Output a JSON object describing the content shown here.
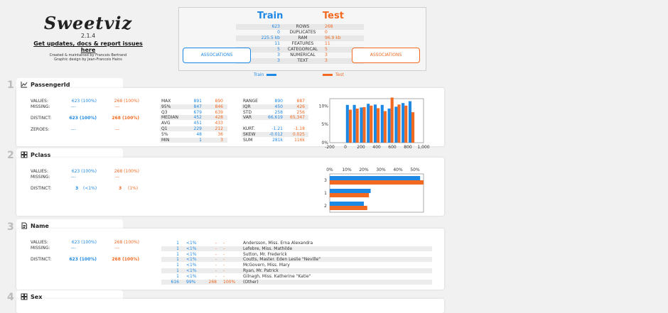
{
  "logo": {
    "brand": "Sweetviz",
    "version": "2.1.4",
    "link": "Get updates, docs & report issues here",
    "credit1": "Created & maintained by Francois Bertrand",
    "credit2": "Graphic design by Jean-Francois Hains"
  },
  "summary": {
    "train_label": "Train",
    "test_label": "Test",
    "rows": [
      {
        "label": "ROWS",
        "train": "623",
        "test": "268"
      },
      {
        "label": "DUPLICATES",
        "train": "0",
        "test": "0"
      },
      {
        "label": "RAM",
        "train": "225.5 kb",
        "test": "96.9 kb"
      },
      {
        "label": "FEATURES",
        "train": "11",
        "test": "11"
      },
      {
        "label": "CATEGORICAL",
        "train": "5",
        "test": "5"
      },
      {
        "label": "NUMERICAL",
        "train": "3",
        "test": "3"
      },
      {
        "label": "TEXT",
        "train": "3",
        "test": "3"
      }
    ],
    "assoc_label": "ASSOCIATIONS"
  },
  "legend": {
    "train": "Train",
    "test": "Test"
  },
  "colors": {
    "train": "#1e88e5",
    "test": "#f26a21"
  },
  "features": [
    {
      "index": "1",
      "name": "PassengerId",
      "icon": "line-chart-icon",
      "left": [
        {
          "label": "VALUES:",
          "train": "623 (100%)",
          "test": "268 (100%)"
        },
        {
          "label": "MISSING:",
          "train": "---",
          "test": "---"
        },
        {
          "label": "DISTINCT:",
          "train": "623 (100%)",
          "test": "268 (100%)"
        },
        {
          "label": "ZEROES:",
          "train": "---",
          "test": "---"
        }
      ],
      "mid": [
        {
          "label": "MAX",
          "train": "891",
          "test": "890"
        },
        {
          "label": "95%",
          "train": "847",
          "test": "846"
        },
        {
          "label": "Q3",
          "train": "679",
          "test": "639"
        },
        {
          "label": "MEDIAN",
          "train": "452",
          "test": "428"
        },
        {
          "label": "AVG",
          "train": "451",
          "test": "433"
        },
        {
          "label": "Q1",
          "train": "229",
          "test": "212"
        },
        {
          "label": "5%",
          "train": "48",
          "test": "36"
        },
        {
          "label": "MIN",
          "train": "1",
          "test": "3"
        }
      ],
      "right": [
        {
          "label": "RANGE",
          "train": "890",
          "test": "887"
        },
        {
          "label": "IQR",
          "train": "450",
          "test": "426"
        },
        {
          "label": "STD",
          "train": "258",
          "test": "256"
        },
        {
          "label": "VAR",
          "train": "66,619",
          "test": "65,347"
        },
        {
          "label": "KURT.",
          "train": "-1.21",
          "test": "-1.18"
        },
        {
          "label": "SKEW",
          "train": "-0.012",
          "test": "0.025"
        },
        {
          "label": "SUM",
          "train": "281k",
          "test": "116k"
        }
      ]
    },
    {
      "index": "2",
      "name": "Pclass",
      "icon": "grid-icon",
      "left": [
        {
          "label": "VALUES:",
          "train": "623 (100%)",
          "test": "268 (100%)"
        },
        {
          "label": "MISSING:",
          "train": "---",
          "test": "---"
        },
        {
          "label": "DISTINCT:",
          "train": "3",
          "train2": "(<1%)",
          "test": "3",
          "test2": "(1%)"
        }
      ]
    },
    {
      "index": "3",
      "name": "Name",
      "icon": "document-icon",
      "left": [
        {
          "label": "VALUES:",
          "train": "623 (100%)",
          "test": "268 (100%)"
        },
        {
          "label": "MISSING:",
          "train": "---",
          "test": "---"
        },
        {
          "label": "DISTINCT:",
          "train": "623 (100%)",
          "test": "268 (100%)"
        }
      ],
      "top_values": [
        {
          "tc": "1",
          "tp": "<1%",
          "sc": "-",
          "sp": "-",
          "value": "Andersson, Miss. Erna Alexandra"
        },
        {
          "tc": "1",
          "tp": "<1%",
          "sc": "-",
          "sp": "-",
          "value": "Lefebre, Miss. Mathilde"
        },
        {
          "tc": "1",
          "tp": "<1%",
          "sc": "-",
          "sp": "-",
          "value": "Sutton, Mr. Frederick"
        },
        {
          "tc": "1",
          "tp": "<1%",
          "sc": "-",
          "sp": "-",
          "value": "Coutts, Master. Eden Leslie \"Neville\""
        },
        {
          "tc": "1",
          "tp": "<1%",
          "sc": "-",
          "sp": "-",
          "value": "McGovern, Miss. Mary"
        },
        {
          "tc": "1",
          "tp": "<1%",
          "sc": "-",
          "sp": "-",
          "value": "Ryan, Mr. Patrick"
        },
        {
          "tc": "1",
          "tp": "<1%",
          "sc": "-",
          "sp": "-",
          "value": "Gilnagh, Miss. Katherine \"Katie\""
        },
        {
          "tc": "616",
          "tp": "99%",
          "sc": "268",
          "sp": "100%",
          "value": "(Other)"
        }
      ]
    },
    {
      "index": "4",
      "name": "Sex",
      "icon": "grid-icon"
    }
  ],
  "chart_data": [
    {
      "type": "bar",
      "title": "",
      "x_ticks": [
        "-200",
        "0",
        "200",
        "400",
        "600",
        "800",
        "1,000"
      ],
      "y_ticks": [
        "0%",
        "5%",
        "10%"
      ],
      "xlim": [
        -200,
        1000
      ],
      "ylim": [
        0,
        12
      ],
      "categories": [
        44.5,
        133.5,
        222.5,
        311.5,
        400.5,
        489.5,
        578.5,
        667.5,
        756.5,
        845.5
      ],
      "series": [
        {
          "name": "Train",
          "values": [
            10.3,
            10.3,
            9.6,
            10.6,
            10.4,
            10.3,
            9.3,
            9.8,
            10.8,
            11.3
          ]
        },
        {
          "name": "Test",
          "values": [
            9.0,
            9.3,
            9.7,
            10.1,
            9.4,
            8.6,
            12.3,
            10.4,
            10.1,
            8.3
          ]
        }
      ]
    },
    {
      "type": "bar",
      "orientation": "horizontal",
      "x_ticks": [
        "0%",
        "10%",
        "20%",
        "30%",
        "40%",
        "50%"
      ],
      "xlim": [
        0,
        55
      ],
      "categories": [
        "3",
        "1",
        "2"
      ],
      "series": [
        {
          "name": "Train",
          "values": [
            53,
            24,
            20
          ]
        },
        {
          "name": "Test",
          "values": [
            55,
            23,
            22
          ]
        }
      ]
    }
  ]
}
